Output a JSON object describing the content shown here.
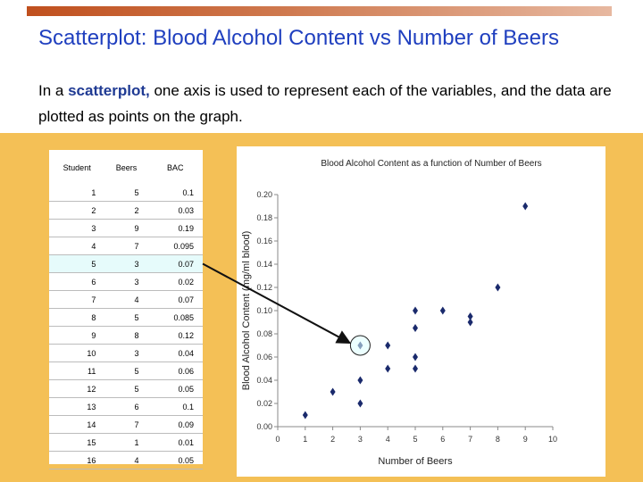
{
  "slide": {
    "title": "Scatterplot: Blood Alcohol Content vs Number of Beers",
    "intro_prefix": "In a ",
    "intro_keyword": "scatterplot,",
    "intro_rest": " one axis is used to represent each of the variables, and the data are plotted as points on the graph."
  },
  "table": {
    "headers": [
      "Student",
      "Beers",
      "BAC"
    ],
    "rows": [
      [
        "1",
        "5",
        "0.1"
      ],
      [
        "2",
        "2",
        "0.03"
      ],
      [
        "3",
        "9",
        "0.19"
      ],
      [
        "4",
        "7",
        "0.095"
      ],
      [
        "5",
        "3",
        "0.07"
      ],
      [
        "6",
        "3",
        "0.02"
      ],
      [
        "7",
        "4",
        "0.07"
      ],
      [
        "8",
        "5",
        "0.085"
      ],
      [
        "9",
        "8",
        "0.12"
      ],
      [
        "10",
        "3",
        "0.04"
      ],
      [
        "11",
        "5",
        "0.06"
      ],
      [
        "12",
        "5",
        "0.05"
      ],
      [
        "13",
        "6",
        "0.1"
      ],
      [
        "14",
        "7",
        "0.09"
      ],
      [
        "15",
        "1",
        "0.01"
      ],
      [
        "16",
        "4",
        "0.05"
      ]
    ],
    "highlighted_row": 5
  },
  "chart_data": {
    "type": "scatter",
    "title": "Blood Alcohol Content as a function of Number of Beers",
    "xlabel": "Number of Beers",
    "ylabel": "Blood Alcohol Content (mg/ml blood)",
    "xlim": [
      0,
      10
    ],
    "ylim": [
      0,
      0.2
    ],
    "xticks": [
      "0",
      "1",
      "2",
      "3",
      "4",
      "5",
      "6",
      "7",
      "8",
      "9",
      "10"
    ],
    "yticks": [
      "0.00",
      "0.02",
      "0.04",
      "0.06",
      "0.08",
      "0.10",
      "0.12",
      "0.14",
      "0.16",
      "0.18",
      "0.20"
    ],
    "grid": false,
    "marker_color": "#1a2a6c",
    "x": [
      5,
      2,
      9,
      7,
      3,
      3,
      4,
      5,
      8,
      3,
      5,
      5,
      6,
      7,
      1,
      4
    ],
    "y": [
      0.1,
      0.03,
      0.19,
      0.095,
      0.07,
      0.02,
      0.07,
      0.085,
      0.12,
      0.04,
      0.06,
      0.05,
      0.1,
      0.09,
      0.01,
      0.05
    ],
    "highlighted_point": {
      "x": 3,
      "y": 0.07
    }
  },
  "colors": {
    "band": "#f4c056",
    "title": "#1f3fbf",
    "keyword": "#1f3a93",
    "arrow": "#111111"
  }
}
